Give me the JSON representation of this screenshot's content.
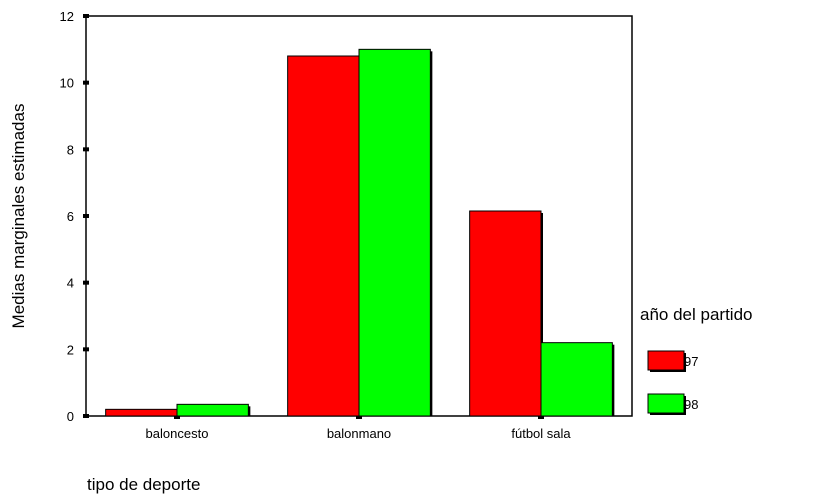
{
  "chart_data": {
    "type": "bar",
    "categories": [
      "baloncesto",
      "balonmano",
      "fútbol sala"
    ],
    "series": [
      {
        "name": "97",
        "values": [
          0.2,
          10.8,
          6.15
        ]
      },
      {
        "name": "98",
        "values": [
          0.35,
          11.0,
          2.2
        ]
      }
    ],
    "xlabel": "tipo de deporte",
    "ylabel": "Medias marginales estimadas",
    "legend_title": "año del partido",
    "ylim": [
      0,
      12
    ],
    "yticks": [
      0,
      2,
      4,
      6,
      8,
      10,
      12
    ],
    "grid": false,
    "legend_position": "right",
    "colors": {
      "97": "#ff0000",
      "98": "#00ff00"
    }
  }
}
